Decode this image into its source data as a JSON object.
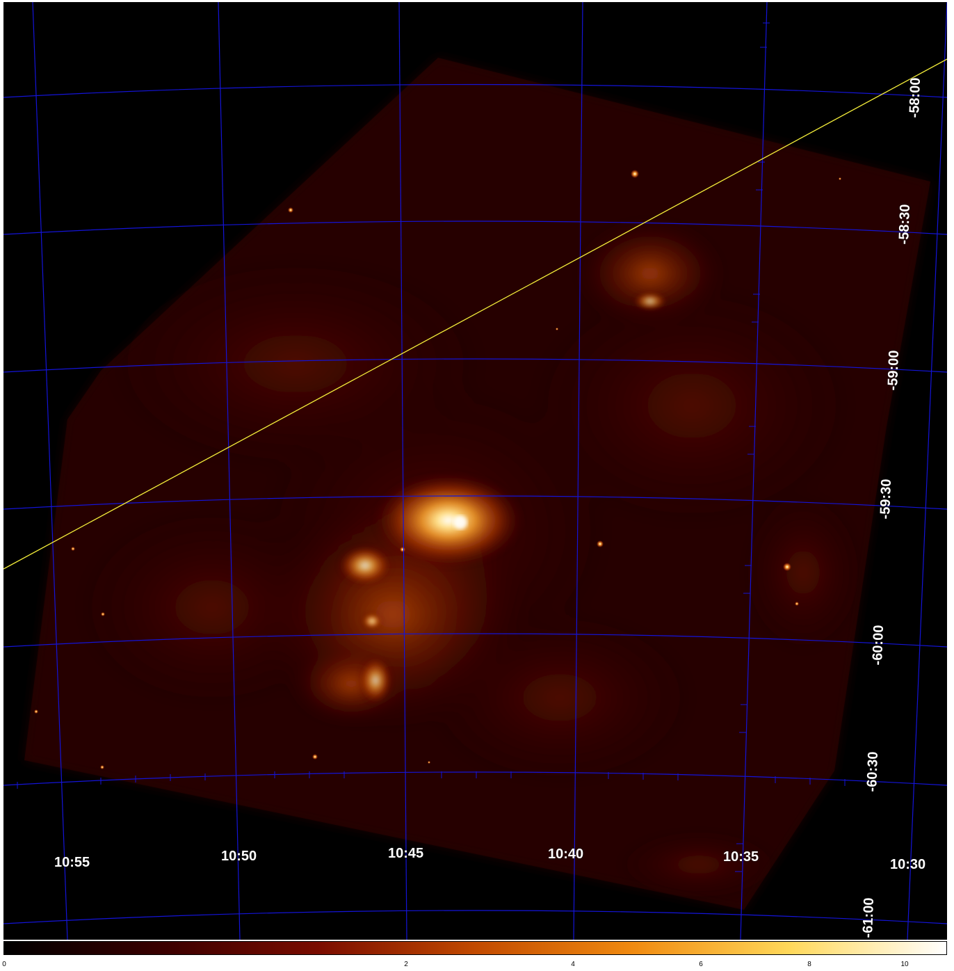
{
  "image": {
    "description_colormap": "heat",
    "colors": {
      "background": "#000000",
      "grid": "#1414d8",
      "region_line": "#f4ee3a",
      "cmap": [
        "#000000",
        "#3a0000",
        "#7a0c00",
        "#c24a00",
        "#f08a10",
        "#ffd85a",
        "#ffffff"
      ]
    }
  },
  "ra_labels": [
    "10:55",
    "10:50",
    "10:45",
    "10:40",
    "10:35",
    "10:30"
  ],
  "dec_labels": [
    "-58:00",
    "-58:30",
    "-59:00",
    "-59:30",
    "-60:00",
    "-60:30",
    "-61:00"
  ],
  "colorbar": {
    "ticks": [
      "0",
      "2",
      "4",
      "6",
      "8",
      "10"
    ],
    "tick_values": [
      0,
      2,
      4,
      6,
      8,
      10
    ]
  }
}
